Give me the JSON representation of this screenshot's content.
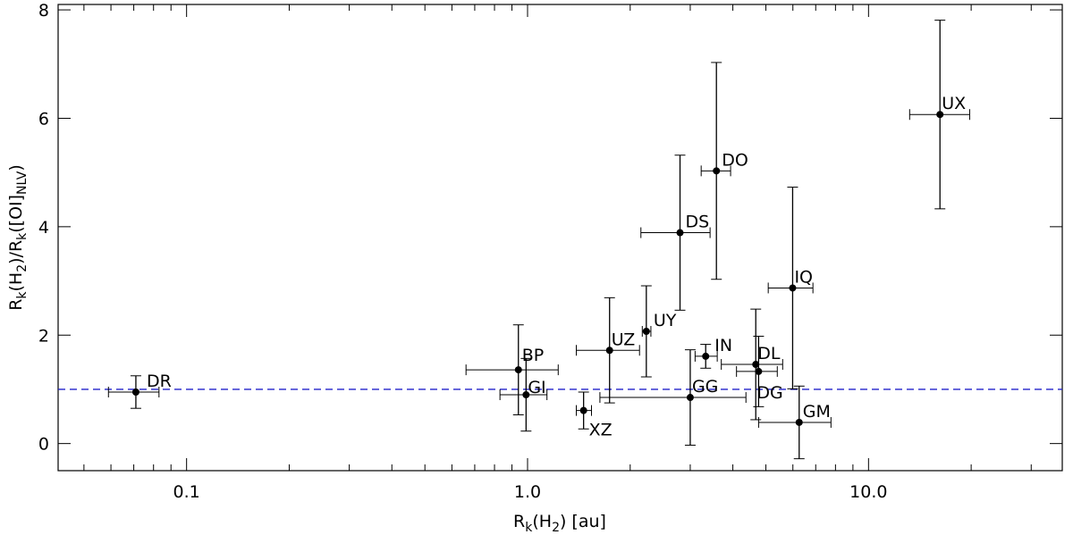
{
  "chart_data": {
    "type": "scatter",
    "xlabel": [
      {
        "t": "R"
      },
      {
        "sub": "k"
      },
      {
        "t": "(H"
      },
      {
        "sub": "2"
      },
      {
        "t": ") [au]"
      }
    ],
    "ylabel": [
      {
        "t": "R"
      },
      {
        "sub": "k"
      },
      {
        "t": "(H"
      },
      {
        "sub": "2"
      },
      {
        "t": ")/R"
      },
      {
        "sub": "k"
      },
      {
        "t": "([OI]"
      },
      {
        "sub": "NLV"
      },
      {
        "t": ")"
      }
    ],
    "xlog": true,
    "xlim": [
      0.042,
      37
    ],
    "ylim": [
      -0.5,
      8.1
    ],
    "xticks": [
      0.1,
      {
        "value": 1,
        "label": "1.0"
      },
      {
        "value": 10,
        "label": "10.0"
      }
    ],
    "xminor": [
      0.05,
      0.06,
      0.07,
      0.08,
      0.09,
      0.2,
      0.3,
      0.4,
      0.5,
      0.6,
      0.7,
      0.8,
      0.9,
      2,
      3,
      4,
      5,
      6,
      7,
      8,
      9,
      20,
      30
    ],
    "yticks": [
      0,
      2,
      4,
      6,
      8
    ],
    "reference_line": {
      "y": 1,
      "color": "#2222cc"
    },
    "color": "#000000",
    "names": [
      "DR",
      "BP",
      "GI",
      "XZ",
      "UZ",
      "UY",
      "DS",
      "DO",
      "GG",
      "IN",
      "DL",
      "DG",
      "IQ",
      "GM",
      "UX"
    ],
    "x": [
      0.071,
      0.94,
      0.99,
      1.46,
      1.74,
      2.23,
      2.8,
      3.58,
      3.0,
      3.33,
      4.67,
      4.76,
      5.99,
      6.26,
      16.2
    ],
    "xmin": [
      0.059,
      0.66,
      0.83,
      1.39,
      1.39,
      2.17,
      2.15,
      3.23,
      1.63,
      3.1,
      3.7,
      4.1,
      5.08,
      4.76,
      13.2
    ],
    "xmax": [
      0.083,
      1.23,
      1.14,
      1.54,
      2.13,
      2.3,
      3.43,
      3.94,
      4.37,
      3.6,
      5.6,
      5.4,
      6.87,
      7.76,
      19.8
    ],
    "y": [
      0.95,
      1.36,
      0.9,
      0.61,
      1.72,
      2.07,
      3.89,
      5.03,
      0.85,
      1.61,
      1.46,
      1.33,
      2.87,
      0.39,
      6.07
    ],
    "yerr": [
      0.3,
      0.83,
      0.67,
      0.34,
      0.97,
      0.84,
      1.43,
      2.0,
      0.88,
      0.22,
      1.02,
      0.65,
      1.86,
      0.67,
      1.74
    ]
  }
}
